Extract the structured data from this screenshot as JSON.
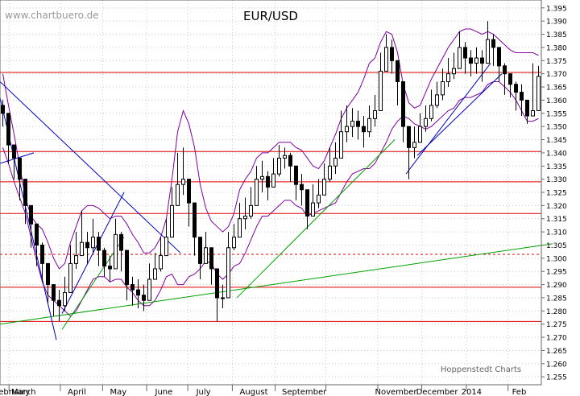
{
  "chart_data": {
    "type": "candlestick",
    "title": "EUR/USD",
    "watermark": "www.chartbuero.de",
    "source_credit": "Hoppenstedt Charts",
    "ylim": [
      1.252,
      1.398
    ],
    "grid": true,
    "y_ticks": [
      "1.255",
      "1.260",
      "1.265",
      "1.270",
      "1.275",
      "1.280",
      "1.285",
      "1.290",
      "1.295",
      "1.300",
      "1.305",
      "1.310",
      "1.315",
      "1.320",
      "1.325",
      "1.330",
      "1.335",
      "1.340",
      "1.345",
      "1.350",
      "1.355",
      "1.360",
      "1.365",
      "1.370",
      "1.375",
      "1.380",
      "1.385",
      "1.390",
      "1.395"
    ],
    "x_ticks": [
      "February",
      "March",
      "April",
      "May",
      "June",
      "July",
      "August",
      "September",
      "",
      "November",
      "December",
      "2014",
      "Feb"
    ],
    "horizontal_levels": [
      {
        "value": 1.3705,
        "style": "solid",
        "color": "#e00000"
      },
      {
        "value": 1.3405,
        "style": "solid",
        "color": "#e00000"
      },
      {
        "value": 1.329,
        "style": "solid",
        "color": "#e00000"
      },
      {
        "value": 1.317,
        "style": "solid",
        "color": "#e00000"
      },
      {
        "value": 1.3015,
        "style": "dashed",
        "color": "#e00000"
      },
      {
        "value": 1.289,
        "style": "solid",
        "color": "#e00000"
      },
      {
        "value": 1.276,
        "style": "solid",
        "color": "#e00000"
      }
    ],
    "trend_lines": [
      {
        "color": "#00a000",
        "points": [
          [
            0,
            1.275
          ],
          [
            98,
            1.3055
          ]
        ]
      },
      {
        "color": "#00a000",
        "points": [
          [
            11,
            1.273
          ],
          [
            22,
            1.308
          ]
        ]
      },
      {
        "color": "#00a000",
        "points": [
          [
            42,
            1.285
          ],
          [
            70,
            1.345
          ]
        ]
      },
      {
        "color": "#0000c0",
        "points": [
          [
            0,
            1.367
          ],
          [
            32,
            1.302
          ]
        ]
      },
      {
        "color": "#0000c0",
        "points": [
          [
            0,
            1.361
          ],
          [
            10,
            1.269
          ]
        ]
      },
      {
        "color": "#0000c0",
        "points": [
          [
            11,
            1.279
          ],
          [
            22,
            1.325
          ]
        ]
      },
      {
        "color": "#0000c0",
        "points": [
          [
            72,
            1.332
          ],
          [
            87,
            1.374
          ]
        ]
      },
      {
        "color": "#0000c0",
        "points": [
          [
            74,
            1.339
          ],
          [
            89,
            1.37
          ]
        ]
      },
      {
        "color": "#0000c0",
        "points": [
          [
            0,
            1.336
          ],
          [
            6,
            1.34
          ]
        ]
      }
    ],
    "closes": [
      1.355,
      1.343,
      1.338,
      1.33,
      1.32,
      1.313,
      1.305,
      1.298,
      1.29,
      1.284,
      1.282,
      1.287,
      1.298,
      1.301,
      1.306,
      1.304,
      1.308,
      1.303,
      1.297,
      1.296,
      1.309,
      1.303,
      1.29,
      1.288,
      1.286,
      1.284,
      1.292,
      1.296,
      1.301,
      1.308,
      1.32,
      1.328,
      1.33,
      1.321,
      1.308,
      1.298,
      1.304,
      1.296,
      1.285,
      1.285,
      1.304,
      1.308,
      1.315,
      1.316,
      1.32,
      1.33,
      1.331,
      1.327,
      1.332,
      1.338,
      1.339,
      1.335,
      1.328,
      1.326,
      1.316,
      1.321,
      1.324,
      1.33,
      1.335,
      1.338,
      1.348,
      1.35,
      1.352,
      1.35,
      1.348,
      1.353,
      1.356,
      1.371,
      1.38,
      1.375,
      1.367,
      1.35,
      1.342,
      1.344,
      1.35,
      1.353,
      1.358,
      1.362,
      1.367,
      1.37,
      1.372,
      1.38,
      1.376,
      1.374,
      1.376,
      1.374,
      1.383,
      1.38,
      1.373,
      1.37,
      1.366,
      1.363,
      1.36,
      1.354,
      1.356,
      1.369
    ],
    "highs": [
      1.36,
      1.347,
      1.342,
      1.337,
      1.326,
      1.318,
      1.31,
      1.306,
      1.298,
      1.29,
      1.288,
      1.293,
      1.305,
      1.31,
      1.318,
      1.31,
      1.315,
      1.31,
      1.304,
      1.301,
      1.315,
      1.31,
      1.296,
      1.293,
      1.292,
      1.29,
      1.298,
      1.302,
      1.308,
      1.315,
      1.327,
      1.34,
      1.342,
      1.33,
      1.315,
      1.306,
      1.31,
      1.302,
      1.292,
      1.29,
      1.31,
      1.313,
      1.321,
      1.323,
      1.327,
      1.335,
      1.337,
      1.333,
      1.338,
      1.343,
      1.342,
      1.34,
      1.334,
      1.332,
      1.323,
      1.328,
      1.33,
      1.336,
      1.342,
      1.344,
      1.356,
      1.358,
      1.357,
      1.356,
      1.354,
      1.358,
      1.362,
      1.378,
      1.385,
      1.383,
      1.375,
      1.356,
      1.349,
      1.35,
      1.355,
      1.358,
      1.364,
      1.367,
      1.372,
      1.376,
      1.378,
      1.386,
      1.382,
      1.379,
      1.38,
      1.379,
      1.39,
      1.385,
      1.379,
      1.374,
      1.37,
      1.367,
      1.366,
      1.359,
      1.374,
      1.373
    ],
    "lows": [
      1.35,
      1.336,
      1.33,
      1.322,
      1.313,
      1.304,
      1.297,
      1.291,
      1.283,
      1.278,
      1.276,
      1.28,
      1.293,
      1.296,
      1.302,
      1.298,
      1.302,
      1.297,
      1.293,
      1.291,
      1.302,
      1.295,
      1.284,
      1.282,
      1.281,
      1.28,
      1.286,
      1.292,
      1.295,
      1.304,
      1.314,
      1.322,
      1.324,
      1.312,
      1.301,
      1.292,
      1.299,
      1.29,
      1.276,
      1.281,
      1.298,
      1.303,
      1.309,
      1.311,
      1.315,
      1.324,
      1.325,
      1.322,
      1.327,
      1.331,
      1.334,
      1.329,
      1.322,
      1.32,
      1.311,
      1.316,
      1.319,
      1.324,
      1.329,
      1.332,
      1.342,
      1.344,
      1.346,
      1.345,
      1.342,
      1.346,
      1.35,
      1.36,
      1.372,
      1.37,
      1.358,
      1.344,
      1.33,
      1.338,
      1.344,
      1.348,
      1.352,
      1.357,
      1.36,
      1.365,
      1.368,
      1.374,
      1.37,
      1.369,
      1.37,
      1.367,
      1.375,
      1.373,
      1.367,
      1.362,
      1.361,
      1.356,
      1.354,
      1.351,
      1.354,
      1.364
    ],
    "bollinger": {
      "upper": [
        1.37,
        1.358,
        1.347,
        1.335,
        1.323,
        1.316,
        1.313,
        1.311,
        1.306,
        1.3,
        1.296,
        1.298,
        1.306,
        1.312,
        1.318,
        1.32,
        1.32,
        1.319,
        1.317,
        1.315,
        1.316,
        1.316,
        1.313,
        1.309,
        1.306,
        1.302,
        1.302,
        1.304,
        1.308,
        1.315,
        1.33,
        1.348,
        1.356,
        1.351,
        1.342,
        1.328,
        1.319,
        1.314,
        1.312,
        1.31,
        1.312,
        1.317,
        1.326,
        1.33,
        1.333,
        1.338,
        1.34,
        1.34,
        1.342,
        1.344,
        1.344,
        1.344,
        1.342,
        1.341,
        1.338,
        1.335,
        1.334,
        1.337,
        1.342,
        1.347,
        1.353,
        1.357,
        1.36,
        1.363,
        1.368,
        1.374,
        1.376,
        1.382,
        1.386,
        1.385,
        1.378,
        1.366,
        1.359,
        1.357,
        1.358,
        1.363,
        1.368,
        1.372,
        1.376,
        1.38,
        1.383,
        1.386,
        1.387,
        1.387,
        1.386,
        1.385,
        1.386,
        1.385,
        1.383,
        1.381,
        1.379,
        1.378,
        1.378,
        1.378,
        1.378,
        1.377
      ],
      "middle": [
        1.356,
        1.347,
        1.338,
        1.329,
        1.32,
        1.312,
        1.306,
        1.301,
        1.296,
        1.292,
        1.289,
        1.289,
        1.292,
        1.296,
        1.301,
        1.304,
        1.306,
        1.306,
        1.305,
        1.303,
        1.304,
        1.304,
        1.301,
        1.298,
        1.295,
        1.292,
        1.292,
        1.294,
        1.298,
        1.304,
        1.312,
        1.319,
        1.323,
        1.322,
        1.318,
        1.312,
        1.309,
        1.306,
        1.303,
        1.301,
        1.303,
        1.307,
        1.312,
        1.316,
        1.32,
        1.325,
        1.328,
        1.328,
        1.33,
        1.332,
        1.333,
        1.333,
        1.331,
        1.33,
        1.327,
        1.326,
        1.326,
        1.328,
        1.331,
        1.334,
        1.339,
        1.343,
        1.346,
        1.348,
        1.351,
        1.354,
        1.356,
        1.361,
        1.365,
        1.367,
        1.365,
        1.36,
        1.356,
        1.354,
        1.354,
        1.356,
        1.359,
        1.362,
        1.365,
        1.368,
        1.37,
        1.373,
        1.374,
        1.374,
        1.374,
        1.374,
        1.376,
        1.376,
        1.375,
        1.373,
        1.371,
        1.369,
        1.367,
        1.365,
        1.365,
        1.365
      ],
      "lower": [
        1.342,
        1.336,
        1.329,
        1.323,
        1.317,
        1.308,
        1.299,
        1.291,
        1.286,
        1.284,
        1.282,
        1.28,
        1.278,
        1.28,
        1.284,
        1.288,
        1.292,
        1.293,
        1.293,
        1.291,
        1.292,
        1.292,
        1.289,
        1.287,
        1.284,
        1.282,
        1.282,
        1.284,
        1.288,
        1.293,
        1.294,
        1.29,
        1.29,
        1.293,
        1.294,
        1.296,
        1.299,
        1.298,
        1.294,
        1.292,
        1.294,
        1.297,
        1.298,
        1.302,
        1.307,
        1.312,
        1.316,
        1.316,
        1.318,
        1.32,
        1.322,
        1.322,
        1.32,
        1.319,
        1.316,
        1.317,
        1.318,
        1.319,
        1.32,
        1.321,
        1.325,
        1.329,
        1.332,
        1.333,
        1.334,
        1.334,
        1.336,
        1.34,
        1.344,
        1.349,
        1.352,
        1.354,
        1.353,
        1.351,
        1.35,
        1.349,
        1.35,
        1.352,
        1.354,
        1.356,
        1.357,
        1.36,
        1.361,
        1.361,
        1.362,
        1.363,
        1.366,
        1.367,
        1.367,
        1.365,
        1.363,
        1.36,
        1.356,
        1.352,
        1.352,
        1.353
      ]
    }
  }
}
